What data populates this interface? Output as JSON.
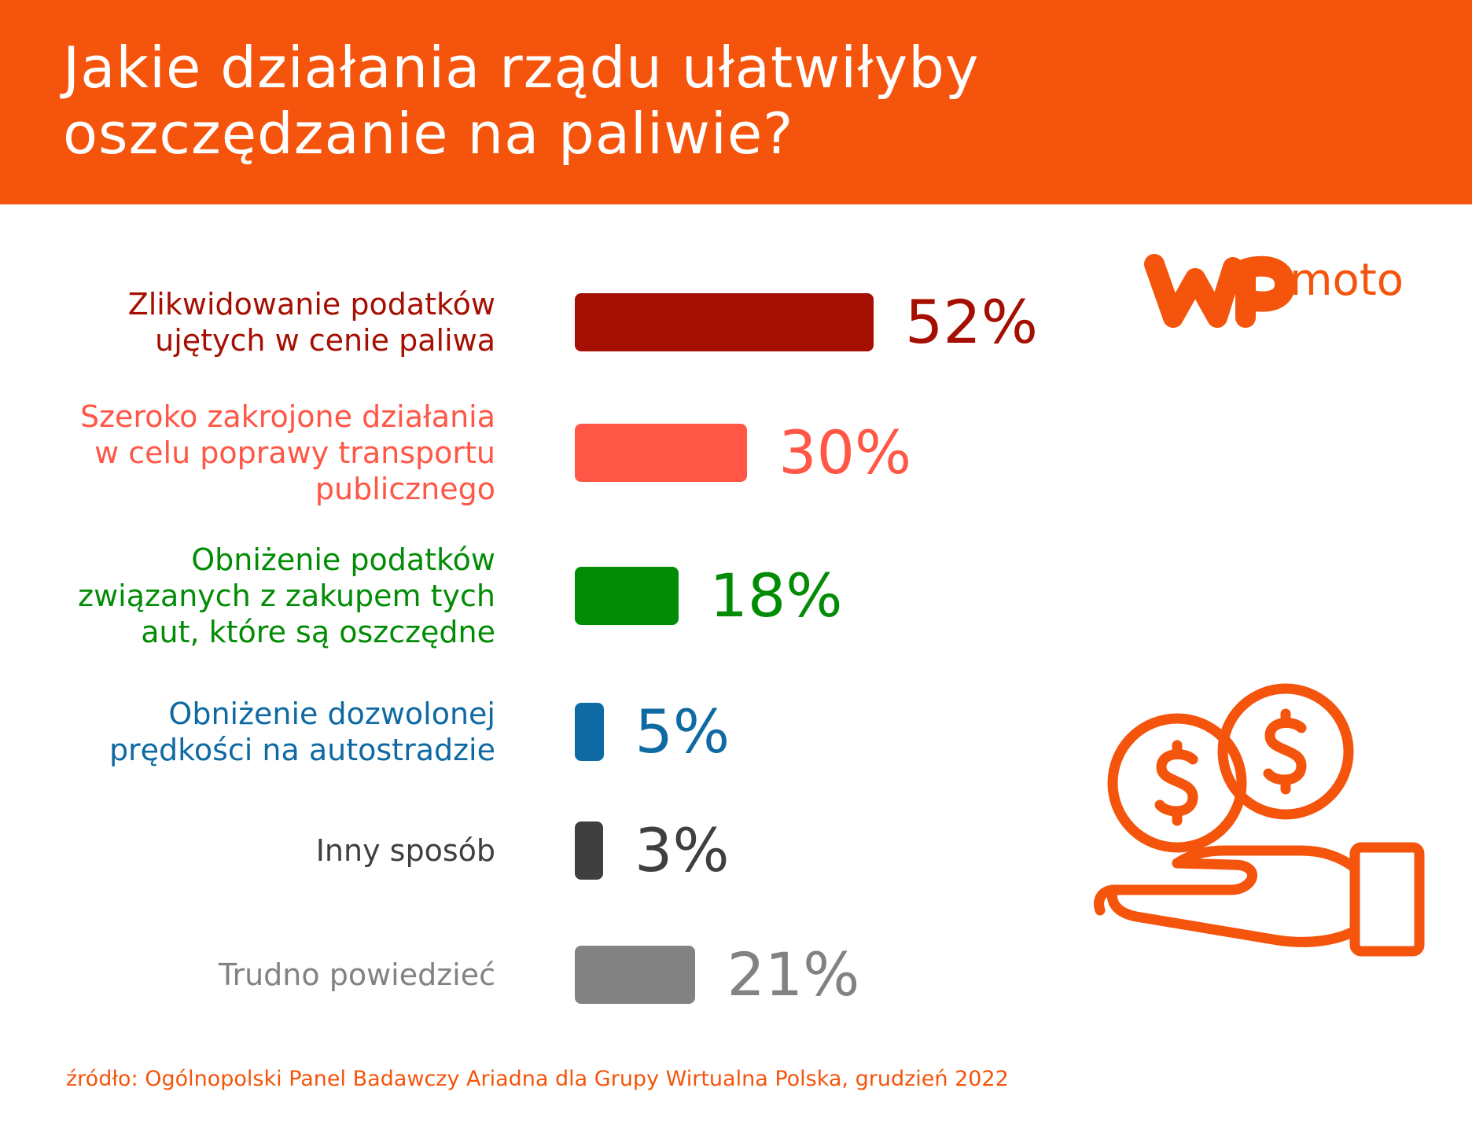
{
  "header": {
    "title_line1": "Jakie działania rządu ułatwiłyby",
    "title_line2": "oszczędzanie na paliwie?"
  },
  "logo": {
    "text": "moto"
  },
  "colors": {
    "accent": "#f4540b",
    "dark_red": "#a50f02",
    "coral": "#ff5645",
    "green": "#028c05",
    "blue": "#0f6aa3",
    "dark_gray": "#3f3f3f",
    "gray": "#828282"
  },
  "chart_data": {
    "type": "bar",
    "orientation": "horizontal",
    "title": "Jakie działania rządu ułatwiłyby oszczędzanie na paliwie?",
    "unit": "%",
    "categories": [
      "Zlikwidowanie podatków ujętych w cenie paliwa",
      "Szeroko zakrojone działania w celu poprawy transportu publicznego",
      "Obniżenie podatków związanych z zakupem tych aut, które są oszczędne",
      "Obniżenie dozwolonej prędkości na autostradzie",
      "Inny sposób",
      "Trudno powiedzieć"
    ],
    "values": [
      52,
      30,
      18,
      5,
      3,
      21
    ],
    "rows": [
      {
        "label_lines": [
          "Zlikwidowanie podatków",
          "ujętych w cenie paliwa"
        ],
        "value": 52,
        "value_label": "52%",
        "color": "#a50f02"
      },
      {
        "label_lines": [
          "Szeroko zakrojone działania",
          "w celu poprawy transportu",
          "publicznego"
        ],
        "value": 30,
        "value_label": "30%",
        "color": "#ff5645"
      },
      {
        "label_lines": [
          "Obniżenie podatków",
          "związanych z zakupem tych",
          "aut, które są oszczędne"
        ],
        "value": 18,
        "value_label": "18%",
        "color": "#028c05"
      },
      {
        "label_lines": [
          "Obniżenie dozwolonej",
          "prędkości na autostradzie"
        ],
        "value": 5,
        "value_label": "5%",
        "color": "#0f6aa3"
      },
      {
        "label_lines": [
          "Inny sposób"
        ],
        "value": 3,
        "value_label": "3%",
        "color": "#3f3f3f"
      },
      {
        "label_lines": [
          "Trudno powiedzieć"
        ],
        "value": 21,
        "value_label": "21%",
        "color": "#828282"
      }
    ],
    "xlim": [
      0,
      52
    ]
  },
  "source": "źródło: Ogólnopolski Panel Badawczy Ariadna dla Grupy Wirtualna Polska, grudzień 2022"
}
